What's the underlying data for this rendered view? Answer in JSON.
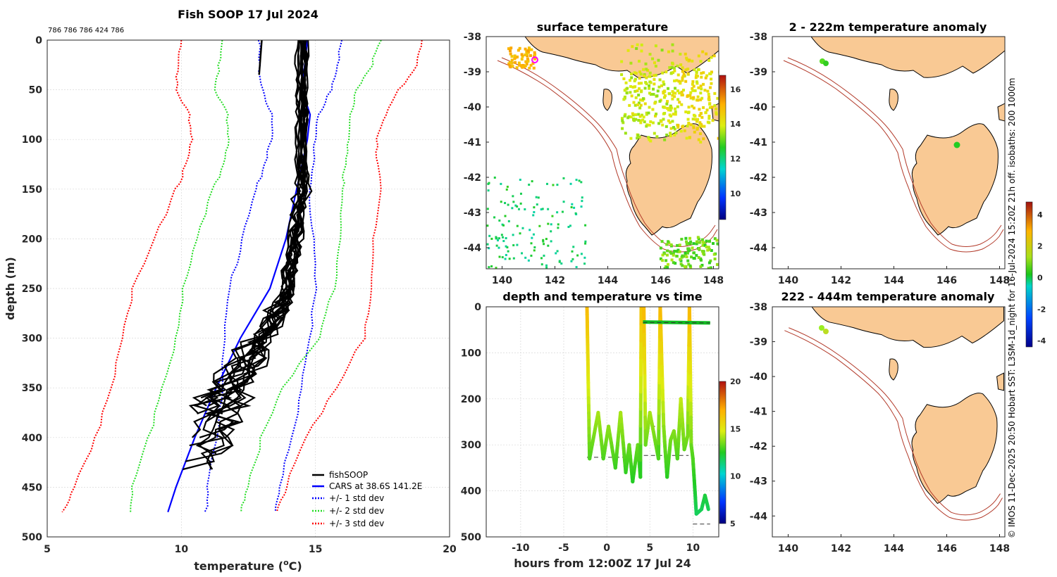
{
  "header": {
    "title": "Fish SOOP 17 Jul 2024",
    "counts": "786 786 786 424 786",
    "side_note": "© IMOS 11-Dec-2025 20:50 Hobart SST: L3SM-1d_night for 16-Jul-2024 15:20Z 21h off. isobaths: 200  1000m"
  },
  "colors": {
    "fish": "#000000",
    "cars": "#0000ff",
    "std1": "#0000ff",
    "std2": "#22dd22",
    "std3": "#ff0000",
    "land": "#f9c994",
    "isobath": "#b23a2a"
  },
  "chart_data": [
    {
      "id": "profile",
      "type": "line",
      "xlabel": "temperature (",
      "xlabel_sup": "o",
      "xlabel_end": "C)",
      "ylabel": "depth (m)",
      "xlim": [
        5,
        20
      ],
      "ylim": [
        500,
        0
      ],
      "xticks": [
        "5",
        "10",
        "15",
        "20"
      ],
      "yticks": [
        "0",
        "50",
        "100",
        "150",
        "200",
        "250",
        "300",
        "350",
        "400",
        "450",
        "500"
      ],
      "legend": [
        "fishSOOP",
        "CARS at 38.6S 141.2E",
        "+/- 1 std dev",
        "+/- 2 std dev",
        "+/- 3 std dev"
      ],
      "cars_depth": [
        0,
        25,
        50,
        75,
        100,
        125,
        150,
        200,
        250,
        300,
        350,
        400,
        450,
        475
      ],
      "cars_temp": [
        14.7,
        14.6,
        14.5,
        14.8,
        14.7,
        14.5,
        14.3,
        13.9,
        13.3,
        12.2,
        11.3,
        10.5,
        9.8,
        9.5
      ],
      "std1_lo": [
        12.9,
        12.9,
        13.0,
        13.4,
        13.4,
        13.1,
        12.8,
        12.3,
        11.8,
        11.6,
        11.5,
        11.3,
        11.0,
        10.9
      ],
      "std1_hi": [
        16.0,
        15.8,
        15.6,
        15.1,
        15.0,
        14.9,
        14.8,
        14.9,
        15.0,
        14.8,
        14.5,
        14.1,
        13.7,
        13.5
      ],
      "std2_lo": [
        11.5,
        11.4,
        11.3,
        11.7,
        11.8,
        11.6,
        11.2,
        10.6,
        10.1,
        9.8,
        9.3,
        8.8,
        8.2,
        8.1
      ],
      "std2_hi": [
        17.4,
        17.1,
        16.5,
        16.3,
        16.2,
        16.1,
        16.0,
        15.9,
        15.7,
        15.1,
        13.8,
        13.0,
        12.5,
        12.2
      ],
      "std3_lo": [
        10.0,
        9.9,
        9.8,
        10.3,
        10.4,
        10.2,
        9.8,
        9.0,
        8.2,
        7.8,
        7.4,
        6.8,
        6.0,
        5.6
      ],
      "std3_hi": [
        19.0,
        18.8,
        18.1,
        17.6,
        17.3,
        17.3,
        17.4,
        17.2,
        17.1,
        16.8,
        15.8,
        14.6,
        13.9,
        13.6
      ],
      "fish_surface_depth": [
        0,
        35
      ],
      "fish_surface_temp": [
        13.0,
        12.9
      ]
    },
    {
      "id": "sst",
      "type": "heatmap",
      "title": "surface temperature",
      "xticks": [
        "140",
        "142",
        "144",
        "146",
        "148"
      ],
      "yticks": [
        "-38",
        "-39",
        "-40",
        "-41",
        "-42",
        "-43",
        "-44"
      ],
      "xlim": [
        139.4,
        148.2
      ],
      "ylim": [
        -44.6,
        -38
      ],
      "colorbar_ticks": [
        "10",
        "12",
        "14",
        "16"
      ],
      "colorbar_range": [
        8.5,
        16.8
      ]
    },
    {
      "id": "depth_time",
      "type": "line",
      "title": "depth and temperature vs time",
      "xlabel": "hours from 12:00Z 17 Jul 24",
      "xticks": [
        "-10",
        "-5",
        "0",
        "5",
        "10"
      ],
      "yticks": [
        "0",
        "100",
        "200",
        "300",
        "400",
        "500"
      ],
      "xlim": [
        -14,
        13
      ],
      "ylim": [
        500,
        0
      ],
      "colorbar_ticks": [
        "5",
        "10",
        "15",
        "20"
      ],
      "colorbar_range": [
        5,
        20
      ]
    },
    {
      "id": "anom_shallow",
      "type": "scatter",
      "title": "2 - 222m temperature anomaly",
      "xticks": [
        "140",
        "142",
        "144",
        "146",
        "148"
      ],
      "yticks": [
        "-38",
        "-39",
        "-40",
        "-41",
        "-42",
        "-43",
        "-44"
      ],
      "colorbar_ticks": [
        "4",
        "2",
        "0",
        "-2",
        "-4"
      ]
    },
    {
      "id": "anom_deep",
      "type": "scatter",
      "title": "222 - 444m temperature anomaly",
      "xticks": [
        "140",
        "142",
        "144",
        "146",
        "148"
      ],
      "yticks": [
        "-38",
        "-39",
        "-40",
        "-41",
        "-42",
        "-43",
        "-44"
      ]
    }
  ]
}
